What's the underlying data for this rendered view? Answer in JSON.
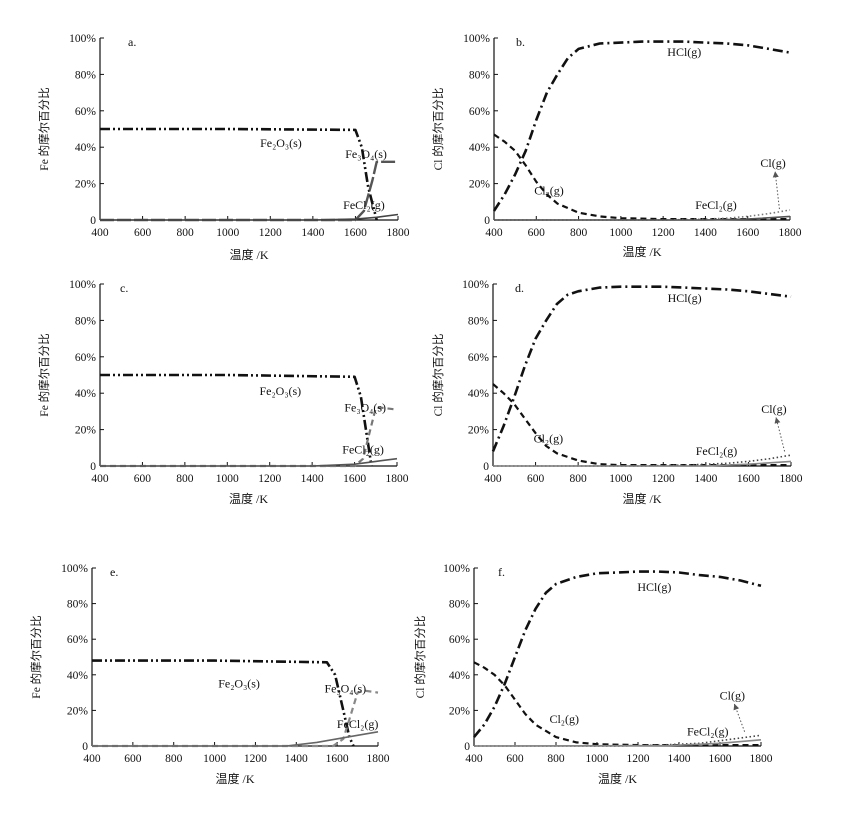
{
  "figure": {
    "title": ""
  },
  "chart_data": [
    {
      "id": "a",
      "type": "line",
      "panel_label": "a.",
      "xlabel": "温度 /K",
      "ylabel": "Fe 的摩尔百分比",
      "xlim": [
        400,
        1800
      ],
      "ylim": [
        0,
        100
      ],
      "xticks": [
        "400",
        "600",
        "800",
        "1000",
        "1200",
        "1400",
        "1600",
        "1800"
      ],
      "yticks": [
        "0",
        "20%",
        "40%",
        "60%",
        "80%",
        "100%"
      ],
      "series": [
        {
          "key": "Fe2O3",
          "color": "#111111",
          "style": "dashdotdot",
          "x": [
            400,
            1000,
            1600,
            1630,
            1660,
            1700
          ],
          "y": [
            50,
            50,
            49.5,
            40,
            18,
            0
          ]
        },
        {
          "key": "Fe3O4",
          "color": "#555555",
          "style": "solid-dash",
          "x": [
            400,
            1600,
            1640,
            1680,
            1700,
            1720,
            1800
          ],
          "y": [
            0,
            0,
            5,
            22,
            32,
            32,
            32
          ]
        },
        {
          "key": "FeCl2",
          "color": "#444444",
          "style": "solid",
          "x": [
            400,
            1400,
            1600,
            1700,
            1800
          ],
          "y": [
            0,
            0,
            0.5,
            1.5,
            3
          ]
        }
      ],
      "annotations": [
        {
          "key": "Fe2O3",
          "label": "Fe₂O₃(s)",
          "at": [
            1250,
            40
          ]
        },
        {
          "key": "Fe3O4",
          "label": "Fe₃O₄(s)",
          "at": [
            1650,
            34
          ]
        },
        {
          "key": "FeCl2",
          "label": "FeCl₂(g)",
          "at": [
            1640,
            6
          ]
        }
      ]
    },
    {
      "id": "b",
      "type": "line",
      "panel_label": "b.",
      "xlabel": "温度 /K",
      "ylabel": "Cl 的摩尔百分比",
      "xlim": [
        400,
        1800
      ],
      "ylim": [
        0,
        100
      ],
      "xticks": [
        "400",
        "600",
        "800",
        "1000",
        "1200",
        "1400",
        "1600",
        "1800"
      ],
      "yticks": [
        "0",
        "20%",
        "40%",
        "60%",
        "80%",
        "100%"
      ],
      "series": [
        {
          "key": "HCl",
          "color": "#111111",
          "style": "dashdot",
          "x": [
            400,
            450,
            500,
            550,
            600,
            650,
            700,
            750,
            800,
            900,
            1000,
            1100,
            1200,
            1300,
            1400,
            1500,
            1600,
            1700,
            1800
          ],
          "y": [
            5,
            14,
            25,
            38,
            55,
            70,
            80,
            89,
            94,
            97,
            97.5,
            98,
            98,
            98,
            97.5,
            97,
            96,
            94,
            92
          ]
        },
        {
          "key": "Cl2",
          "color": "#111111",
          "style": "dashed",
          "x": [
            400,
            450,
            500,
            550,
            600,
            650,
            700,
            800,
            900,
            1000,
            1200,
            1400,
            1600,
            1800
          ],
          "y": [
            47,
            43,
            38,
            30,
            21,
            14,
            9,
            4,
            2,
            1,
            0.5,
            0.5,
            0.5,
            0.5
          ]
        },
        {
          "key": "Cl",
          "color": "#777777",
          "style": "dotted",
          "x": [
            400,
            1200,
            1400,
            1500,
            1600,
            1700,
            1800
          ],
          "y": [
            0,
            0,
            0.5,
            1,
            2,
            3.5,
            5.5
          ]
        },
        {
          "key": "FeCl2",
          "color": "#555555",
          "style": "solid",
          "x": [
            400,
            1400,
            1600,
            1800
          ],
          "y": [
            0,
            0,
            0.5,
            2
          ]
        }
      ],
      "annotations": [
        {
          "key": "HCl",
          "label": "HCl(g)",
          "at": [
            1300,
            90
          ]
        },
        {
          "key": "Cl2",
          "label": "Cl₂(g)",
          "at": [
            660,
            14
          ]
        },
        {
          "key": "Cl",
          "label": "Cl(g)",
          "at": [
            1720,
            29
          ],
          "arrow_to": [
            1750,
            6
          ]
        },
        {
          "key": "FeCl2",
          "label": "FeCl₂(g)",
          "at": [
            1450,
            6
          ]
        }
      ]
    },
    {
      "id": "c",
      "type": "line",
      "panel_label": "c.",
      "xlabel": "温度 /K",
      "ylabel": "Fe 的摩尔百分比",
      "xlim": [
        400,
        1800
      ],
      "ylim": [
        0,
        100
      ],
      "xticks": [
        "400",
        "600",
        "800",
        "1000",
        "1200",
        "1400",
        "1600",
        "1800"
      ],
      "yticks": [
        "0",
        "20%",
        "40%",
        "60%",
        "80%",
        "100%"
      ],
      "series": [
        {
          "key": "Fe2O3",
          "color": "#111111",
          "style": "dashdotdot",
          "x": [
            400,
            1000,
            1600,
            1630,
            1660,
            1680
          ],
          "y": [
            50,
            50,
            49,
            38,
            15,
            0
          ]
        },
        {
          "key": "Fe3O4",
          "color": "#777777",
          "style": "dashed",
          "x": [
            400,
            1600,
            1640,
            1670,
            1700,
            1730,
            1800
          ],
          "y": [
            0,
            0,
            4,
            18,
            32,
            32,
            31
          ]
        },
        {
          "key": "FeCl2",
          "color": "#555555",
          "style": "solid",
          "x": [
            400,
            1400,
            1600,
            1700,
            1800
          ],
          "y": [
            0,
            0,
            1,
            2.5,
            4
          ]
        }
      ],
      "annotations": [
        {
          "key": "Fe2O3",
          "label": "Fe₂O₃(s)",
          "at": [
            1250,
            39
          ]
        },
        {
          "key": "Fe3O4",
          "label": "Fe₃O₄(s)",
          "at": [
            1650,
            30
          ]
        },
        {
          "key": "FeCl2",
          "label": "FeCl₂(g)",
          "at": [
            1640,
            7
          ]
        }
      ]
    },
    {
      "id": "d",
      "type": "line",
      "panel_label": "d.",
      "xlabel": "温度 /K",
      "ylabel": "Cl 的摩尔百分比",
      "xlim": [
        400,
        1800
      ],
      "ylim": [
        0,
        100
      ],
      "xticks": [
        "400",
        "600",
        "800",
        "1000",
        "1200",
        "1400",
        "1600",
        "1800"
      ],
      "yticks": [
        "0",
        "20%",
        "40%",
        "60%",
        "80%",
        "100%"
      ],
      "series": [
        {
          "key": "HCl",
          "color": "#111111",
          "style": "dashdot",
          "x": [
            400,
            450,
            500,
            550,
            600,
            650,
            700,
            750,
            800,
            900,
            1000,
            1100,
            1200,
            1300,
            1400,
            1500,
            1600,
            1700,
            1800
          ],
          "y": [
            8,
            22,
            38,
            55,
            70,
            80,
            89,
            94,
            96,
            98,
            98.5,
            98.5,
            98.5,
            98,
            97.5,
            97,
            96,
            94.5,
            93
          ]
        },
        {
          "key": "Cl2",
          "color": "#111111",
          "style": "dashed",
          "x": [
            400,
            450,
            500,
            550,
            600,
            650,
            700,
            800,
            900,
            1000,
            1200,
            1400,
            1600,
            1800
          ],
          "y": [
            45,
            40,
            34,
            26,
            18,
            11,
            7,
            3,
            1,
            0.5,
            0.5,
            0.5,
            0.5,
            0.5
          ]
        },
        {
          "key": "Cl",
          "color": "#444444",
          "style": "dotted",
          "x": [
            400,
            1100,
            1300,
            1500,
            1600,
            1700,
            1800
          ],
          "y": [
            0,
            0,
            0.5,
            1.5,
            2.5,
            4,
            6
          ]
        },
        {
          "key": "FeCl2",
          "color": "#888888",
          "style": "solid",
          "x": [
            400,
            1400,
            1600,
            1800
          ],
          "y": [
            0,
            0,
            1,
            2.5
          ]
        }
      ],
      "annotations": [
        {
          "key": "HCl",
          "label": "HCl(g)",
          "at": [
            1300,
            90
          ]
        },
        {
          "key": "Cl2",
          "label": "Cl₂(g)",
          "at": [
            660,
            13
          ]
        },
        {
          "key": "Cl",
          "label": "Cl(g)",
          "at": [
            1720,
            29
          ],
          "arrow_to": [
            1770,
            8
          ]
        },
        {
          "key": "FeCl2",
          "label": "FeCl₂(g)",
          "at": [
            1450,
            6
          ]
        }
      ]
    },
    {
      "id": "e",
      "type": "line",
      "panel_label": "e.",
      "xlabel": "温度 /K",
      "ylabel": "Fe 的摩尔百分比",
      "xlim": [
        400,
        1800
      ],
      "ylim": [
        0,
        100
      ],
      "xticks": [
        "400",
        "600",
        "800",
        "1000",
        "1200",
        "1400",
        "1600",
        "1800"
      ],
      "yticks": [
        "0",
        "20%",
        "40%",
        "60%",
        "80%",
        "100%"
      ],
      "series": [
        {
          "key": "Fe2O3",
          "color": "#111111",
          "style": "dashdotdot",
          "x": [
            400,
            1000,
            1550,
            1590,
            1630,
            1660,
            1680
          ],
          "y": [
            48,
            48,
            47,
            40,
            20,
            5,
            0
          ]
        },
        {
          "key": "Fe3O4",
          "color": "#888888",
          "style": "dashed",
          "x": [
            400,
            1580,
            1630,
            1660,
            1700,
            1740,
            1800
          ],
          "y": [
            0,
            0,
            4,
            15,
            30,
            31,
            30
          ]
        },
        {
          "key": "FeCl2",
          "color": "#666666",
          "style": "solid",
          "x": [
            400,
            1350,
            1500,
            1650,
            1800
          ],
          "y": [
            0,
            0,
            2,
            5,
            8
          ]
        }
      ],
      "annotations": [
        {
          "key": "Fe2O3",
          "label": "Fe₂O₃(s)",
          "at": [
            1120,
            33
          ]
        },
        {
          "key": "Fe3O4",
          "label": "Fe₃O₄(s)",
          "at": [
            1640,
            30
          ]
        },
        {
          "key": "FeCl2",
          "label": "FeCl₂(g)",
          "at": [
            1700,
            10
          ]
        }
      ]
    },
    {
      "id": "f",
      "type": "line",
      "panel_label": "f.",
      "xlabel": "温度 /K",
      "ylabel": "Cl 的摩尔百分比",
      "xlim": [
        400,
        1800
      ],
      "ylim": [
        0,
        100
      ],
      "xticks": [
        "400",
        "600",
        "800",
        "1000",
        "1200",
        "1400",
        "1600",
        "1800"
      ],
      "yticks": [
        "0",
        "20%",
        "40%",
        "60%",
        "80%",
        "100%"
      ],
      "series": [
        {
          "key": "HCl",
          "color": "#111111",
          "style": "dashdot",
          "x": [
            400,
            450,
            500,
            550,
            600,
            650,
            700,
            750,
            800,
            900,
            1000,
            1100,
            1200,
            1300,
            1400,
            1500,
            1600,
            1700,
            1800
          ],
          "y": [
            5,
            12,
            22,
            35,
            50,
            65,
            77,
            86,
            91,
            95,
            97,
            97.5,
            98,
            98,
            97.5,
            96,
            95,
            93,
            90
          ]
        },
        {
          "key": "Cl2",
          "color": "#111111",
          "style": "dashed",
          "x": [
            400,
            450,
            500,
            550,
            600,
            650,
            700,
            800,
            900,
            1000,
            1200,
            1400,
            1600,
            1800
          ],
          "y": [
            47,
            44,
            40,
            34,
            26,
            18,
            12,
            5,
            2,
            1,
            0.5,
            0.5,
            0.5,
            0.5
          ]
        },
        {
          "key": "Cl",
          "color": "#444444",
          "style": "dotted",
          "x": [
            400,
            1100,
            1300,
            1500,
            1600,
            1700,
            1800
          ],
          "y": [
            0,
            0,
            0.5,
            1.5,
            3,
            4.5,
            6
          ]
        },
        {
          "key": "FeCl2",
          "color": "#888888",
          "style": "solid",
          "x": [
            400,
            1350,
            1600,
            1800
          ],
          "y": [
            0,
            0.2,
            1.5,
            3.5
          ]
        }
      ],
      "annotations": [
        {
          "key": "HCl",
          "label": "HCl(g)",
          "at": [
            1280,
            87
          ]
        },
        {
          "key": "Cl2",
          "label": "Cl₂(g)",
          "at": [
            840,
            13
          ]
        },
        {
          "key": "Cl",
          "label": "Cl(g)",
          "at": [
            1660,
            26
          ],
          "arrow_to": [
            1720,
            8
          ]
        },
        {
          "key": "FeCl2",
          "label": "FeCl₂(g)",
          "at": [
            1540,
            6
          ]
        }
      ]
    }
  ]
}
